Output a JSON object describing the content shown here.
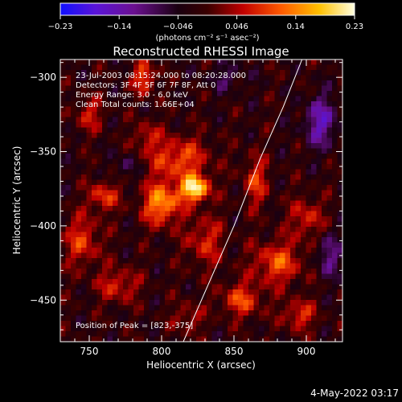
{
  "chart_data": {
    "type": "heatmap",
    "title": "Reconstructed RHESSI Image",
    "xlabel": "Heliocentric X (arcsec)",
    "ylabel": "Heliocentric Y (arcsec)",
    "xlim": [
      730,
      925
    ],
    "ylim": [
      -478,
      -288
    ],
    "xticks": [
      750,
      800,
      850,
      900
    ],
    "yticks": [
      -300,
      -350,
      -400,
      -450
    ],
    "info_lines": [
      "23-Jul-2003 08:15:24.000 to 08:20:28.000",
      "Detectors: 3F 4F 5F 6F 7F 8F, Att 0",
      "Energy Range: 3.0 - 6.0 keV",
      "Clean     Total counts: 1.66E+04"
    ],
    "peak_label": "Position of Peak = [823,-375]",
    "peak": [
      823,
      -375
    ],
    "colorbar": {
      "ticks": [
        "-0.23",
        "-0.14",
        "-0.046",
        "0.046",
        "0.14",
        "0.23"
      ],
      "unit_label": "(photons cm⁻² s⁻¹ asec⁻²)",
      "range": [
        -0.23,
        0.23
      ]
    },
    "limb_curve": [
      [
        815,
        -478
      ],
      [
        832,
        -440
      ],
      [
        850,
        -400
      ],
      [
        868,
        -355
      ],
      [
        884,
        -320
      ],
      [
        897,
        -288
      ]
    ],
    "sources": [
      {
        "x": 823,
        "y": -375,
        "amp": 0.23,
        "sx": 7,
        "sy": 6
      },
      {
        "x": 800,
        "y": -385,
        "amp": 0.17,
        "sx": 9,
        "sy": 10
      },
      {
        "x": 788,
        "y": -300,
        "amp": 0.13,
        "sx": 5,
        "sy": 8
      },
      {
        "x": 812,
        "y": -355,
        "amp": 0.12,
        "sx": 14,
        "sy": 10
      },
      {
        "x": 760,
        "y": -380,
        "amp": 0.11,
        "sx": 7,
        "sy": 7
      },
      {
        "x": 745,
        "y": -410,
        "amp": 0.1,
        "sx": 9,
        "sy": 12
      },
      {
        "x": 880,
        "y": -425,
        "amp": 0.12,
        "sx": 12,
        "sy": 10
      },
      {
        "x": 855,
        "y": -450,
        "amp": 0.11,
        "sx": 10,
        "sy": 8
      },
      {
        "x": 895,
        "y": -460,
        "amp": 0.1,
        "sx": 8,
        "sy": 7
      },
      {
        "x": 865,
        "y": -370,
        "amp": 0.1,
        "sx": 6,
        "sy": 12
      },
      {
        "x": 770,
        "y": -440,
        "amp": 0.09,
        "sx": 10,
        "sy": 8
      },
      {
        "x": 830,
        "y": -410,
        "amp": 0.09,
        "sx": 9,
        "sy": 12
      },
      {
        "x": 750,
        "y": -325,
        "amp": 0.08,
        "sx": 7,
        "sy": 8
      },
      {
        "x": 900,
        "y": -395,
        "amp": 0.09,
        "sx": 8,
        "sy": 10
      },
      {
        "x": 818,
        "y": -462,
        "amp": 0.07,
        "sx": 7,
        "sy": 7
      },
      {
        "x": 790,
        "y": -340,
        "amp": 0.08,
        "sx": 6,
        "sy": 7
      },
      {
        "x": 910,
        "y": -330,
        "amp": -0.12,
        "sx": 8,
        "sy": 12
      },
      {
        "x": 915,
        "y": -420,
        "amp": -0.09,
        "sx": 6,
        "sy": 10
      },
      {
        "x": 775,
        "y": -360,
        "amp": -0.06,
        "sx": 5,
        "sy": 6
      },
      {
        "x": 845,
        "y": -300,
        "amp": -0.05,
        "sx": 10,
        "sy": 7
      }
    ]
  },
  "footer": {
    "timestamp": "4-May-2022 03:17"
  }
}
